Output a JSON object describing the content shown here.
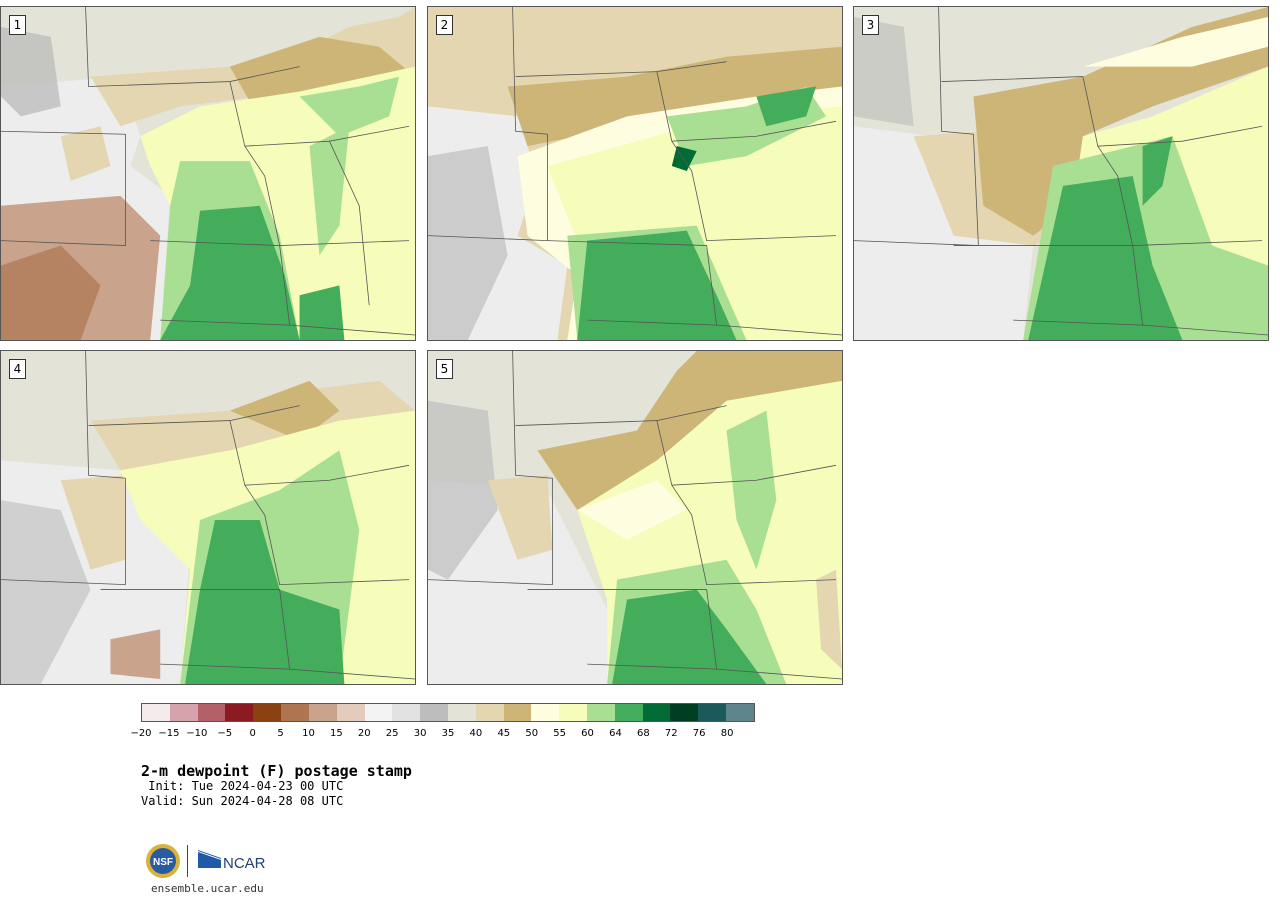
{
  "title": "2-m dewpoint (F) postage stamp",
  "init": " Init: Tue 2024-04-23 00 UTC",
  "valid": "Valid: Sun 2024-04-28 08 UTC",
  "website": "ensemble.ucar.edu",
  "logos": {
    "nsf_text": "NSF",
    "ncar_text": "NCAR"
  },
  "members": [
    "1",
    "2",
    "3",
    "4",
    "5"
  ],
  "colorbar": {
    "colors": [
      "#f4ecec",
      "#d6a3ab",
      "#b26168",
      "#8c1a22",
      "#8a4213",
      "#ad7550",
      "#c9a38b",
      "#e3ccbc",
      "#f3f3f3",
      "#e2e2e2",
      "#bdbdbd",
      "#e3e3d8",
      "#e3d6b0",
      "#cdb477",
      "#fffde0",
      "#f6fcb9",
      "#a8df92",
      "#44ad5b",
      "#006b35",
      "#003e23",
      "#1b5a5a",
      "#5d858b"
    ],
    "tick_labels": [
      "−20",
      "−15",
      "−10",
      "−5",
      "0",
      "5",
      "10",
      "15",
      "20",
      "25",
      "30",
      "35",
      "40",
      "45",
      "50",
      "55",
      "60",
      "64",
      "68",
      "72",
      "76",
      "80"
    ]
  },
  "map_colors": {
    "light_gray": "#e3e3d8",
    "mid_gray": "#bdbdbd",
    "pale_gray": "#ededed",
    "tan_light": "#e3d6b0",
    "tan_dark": "#cdb477",
    "cream": "#fffde0",
    "pale_yellow": "#f6fcb9",
    "light_green": "#a8df92",
    "green": "#44ad5b",
    "pink_brown": "#c9a38b",
    "brown": "#ad7550",
    "dark_green": "#006b35"
  }
}
